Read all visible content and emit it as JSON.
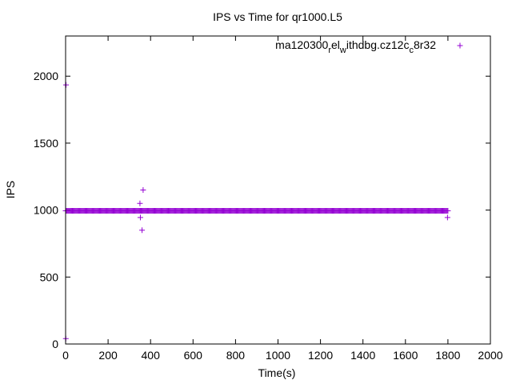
{
  "chart_data": {
    "type": "scatter",
    "title": "IPS vs Time for qr1000.L5",
    "xlabel": "Time(s)",
    "ylabel": "IPS",
    "xlim": [
      0,
      2000
    ],
    "ylim": [
      0,
      2300
    ],
    "xticks": [
      "0",
      "200",
      "400",
      "600",
      "800",
      "1000",
      "1200",
      "1400",
      "1600",
      "1800",
      "2000"
    ],
    "yticks": [
      "0",
      "500",
      "1000",
      "1500",
      "2000"
    ],
    "grid": false,
    "legend_position": "top-right",
    "series": [
      {
        "name": "ma120300_rel_withdbg.cz12c_c8r32",
        "legend_label": {
          "base": "ma120300",
          "parts": [
            {
              "sub": "r",
              "text": "el"
            },
            {
              "sub": "w",
              "text": "ithdbg.cz12c"
            },
            {
              "sub": "c",
              "text": "8r32"
            }
          ]
        },
        "color": "#9400d3",
        "marker": "plus",
        "baseline": {
          "x_start": 0,
          "x_end": 1800,
          "step": 4,
          "y": 995
        },
        "points": [
          [
            1,
            40
          ],
          [
            2,
            1935
          ],
          [
            350,
            1050
          ],
          [
            352,
            945
          ],
          [
            360,
            850
          ],
          [
            365,
            1150
          ],
          [
            1798,
            945
          ]
        ]
      }
    ]
  }
}
